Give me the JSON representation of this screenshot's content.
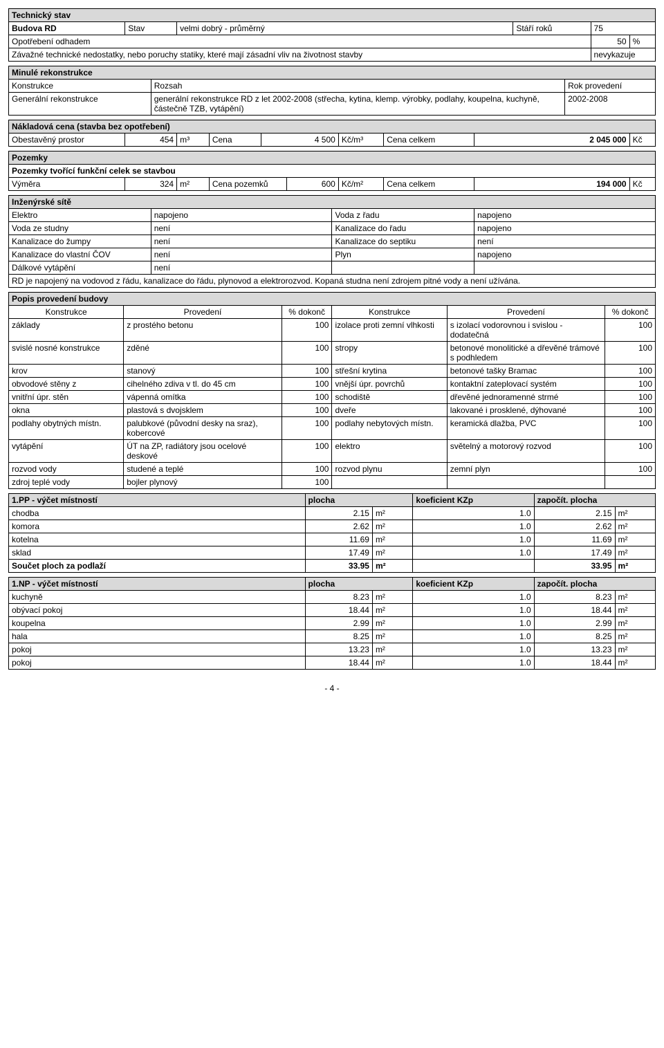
{
  "tech_state": {
    "header": "Technický stav",
    "row1": {
      "l1": "Budova RD",
      "l2": "Stav",
      "v2": "velmi dobrý - průměrný",
      "l3": "Stáří roků",
      "v3": "75"
    },
    "row2": {
      "l": "Opotřebení odhadem",
      "v": "50",
      "u": "%"
    },
    "row3": {
      "l": "Závažné technické nedostatky, nebo poruchy statiky, které mají zásadní vliv na životnost stavby",
      "v": "nevykazuje"
    }
  },
  "recon": {
    "header": "Minulé rekonstrukce",
    "h1": "Konstrukce",
    "h2": "Rozsah",
    "h3": "Rok provedení",
    "r1c1": "Generální rekonstrukce",
    "r1c2": "generální rekonstrukce RD z let 2002-2008 (střecha, kytina, klemp. výrobky, podlahy, koupelna, kuchyně, částečně TZB, vytápění)",
    "r1c3": "2002-2008"
  },
  "cost": {
    "header": "Nákladová cena (stavba bez opotřebení)",
    "l1": "Obestavěný prostor",
    "v1": "454",
    "u1": "m³",
    "l2": "Cena",
    "v2": "4 500",
    "u2": "Kč/m³",
    "l3": "Cena celkem",
    "v3": "2 045 000",
    "u3": "Kč"
  },
  "land": {
    "header": "Pozemky",
    "sub": "Pozemky tvořící funkční celek se stavbou",
    "l1": "Výměra",
    "v1": "324",
    "u1": "m²",
    "l2": "Cena pozemků",
    "v2": "600",
    "u2": "Kč/m²",
    "l3": "Cena celkem",
    "v3": "194 000",
    "u3": "Kč"
  },
  "util": {
    "header": "Inženýrské sítě",
    "rows": [
      {
        "l1": "Elektro",
        "v1": "napojeno",
        "l2": "Voda z řadu",
        "v2": "napojeno"
      },
      {
        "l1": "Voda ze studny",
        "v1": "není",
        "l2": "Kanalizace do řadu",
        "v2": "napojeno"
      },
      {
        "l1": "Kanalizace do žumpy",
        "v1": "není",
        "l2": "Kanalizace do septiku",
        "v2": "není"
      },
      {
        "l1": "Kanalizace do vlastní ČOV",
        "v1": "není",
        "l2": "Plyn",
        "v2": "napojeno"
      },
      {
        "l1": "Dálkové vytápění",
        "v1": "není",
        "l2": "",
        "v2": ""
      }
    ],
    "note": "RD je napojený na vodovod z řádu, kanalizace do řádu, plynovod a elektrorozvod. Kopaná studna není zdrojem pitné vody a není užívána."
  },
  "build": {
    "header": "Popis provedení budovy",
    "h1": "Konstrukce",
    "h2": "Provedení",
    "h3": "% dokonč",
    "h4": "Konstrukce",
    "h5": "Provedení",
    "h6": "% dokonč",
    "rows": [
      {
        "c1": "základy",
        "c2": "z prostého betonu",
        "c3": "100",
        "c4": "izolace proti zemní vlhkosti",
        "c5": "s izolací vodorovnou i svislou - dodatečná",
        "c6": "100"
      },
      {
        "c1": "svislé nosné konstrukce",
        "c2": "zděné",
        "c3": "100",
        "c4": "stropy",
        "c5": "betonové monolitické a dřevěné trámové s podhledem",
        "c6": "100"
      },
      {
        "c1": "krov",
        "c2": "stanový",
        "c3": "100",
        "c4": "střešní krytina",
        "c5": "betonové tašky Bramac",
        "c6": "100"
      },
      {
        "c1": "obvodové stěny z",
        "c2": "cihelného zdiva v tl. do 45 cm",
        "c3": "100",
        "c4": "vnější úpr. povrchů",
        "c5": "kontaktní zateplovací systém",
        "c6": "100"
      },
      {
        "c1": "vnitřní úpr. stěn",
        "c2": "vápenná omítka",
        "c3": "100",
        "c4": "schodiště",
        "c5": "dřevěné jednoramenné strmé",
        "c6": "100"
      },
      {
        "c1": "okna",
        "c2": "plastová s dvojsklem",
        "c3": "100",
        "c4": "dveře",
        "c5": "lakované i prosklené, dýhované",
        "c6": "100"
      },
      {
        "c1": "podlahy obytných místn.",
        "c2": "palubkové (původní desky na sraz), kobercové",
        "c3": "100",
        "c4": "podlahy nebytových místn.",
        "c5": "keramická dlažba, PVC",
        "c6": "100"
      },
      {
        "c1": "vytápění",
        "c2": "ÚT na ZP, radiátory jsou ocelové deskové",
        "c3": "100",
        "c4": "elektro",
        "c5": "světelný a motorový rozvod",
        "c6": "100"
      },
      {
        "c1": "rozvod vody",
        "c2": "studené a teplé",
        "c3": "100",
        "c4": "rozvod plynu",
        "c5": "zemní plyn",
        "c6": "100"
      },
      {
        "c1": "zdroj teplé vody",
        "c2": "bojler plynový",
        "c3": "100",
        "c4": "",
        "c5": "",
        "c6": ""
      }
    ]
  },
  "floor1": {
    "header": "1.PP - výčet místností",
    "h2": "plocha",
    "h3": "koeficient KZp",
    "h4": "započít. plocha",
    "rows": [
      {
        "n": "chodba",
        "a": "2.15",
        "u": "m²",
        "k": "1.0",
        "z": "2.15",
        "zu": "m²"
      },
      {
        "n": "komora",
        "a": "2.62",
        "u": "m²",
        "k": "1.0",
        "z": "2.62",
        "zu": "m²"
      },
      {
        "n": "kotelna",
        "a": "11.69",
        "u": "m²",
        "k": "1.0",
        "z": "11.69",
        "zu": "m²"
      },
      {
        "n": "sklad",
        "a": "17.49",
        "u": "m²",
        "k": "1.0",
        "z": "17.49",
        "zu": "m²"
      }
    ],
    "sum": {
      "l": "Součet ploch za podlaží",
      "a": "33.95",
      "u": "m²",
      "z": "33.95",
      "zu": "m²"
    }
  },
  "floor2": {
    "header": "1.NP - výčet místností",
    "h2": "plocha",
    "h3": "koeficient KZp",
    "h4": "započít. plocha",
    "rows": [
      {
        "n": "kuchyně",
        "a": "8.23",
        "u": "m²",
        "k": "1.0",
        "z": "8.23",
        "zu": "m²"
      },
      {
        "n": "obývací pokoj",
        "a": "18.44",
        "u": "m²",
        "k": "1.0",
        "z": "18.44",
        "zu": "m²"
      },
      {
        "n": "koupelna",
        "a": "2.99",
        "u": "m²",
        "k": "1.0",
        "z": "2.99",
        "zu": "m²"
      },
      {
        "n": "hala",
        "a": "8.25",
        "u": "m²",
        "k": "1.0",
        "z": "8.25",
        "zu": "m²"
      },
      {
        "n": "pokoj",
        "a": "13.23",
        "u": "m²",
        "k": "1.0",
        "z": "13.23",
        "zu": "m²"
      },
      {
        "n": "pokoj",
        "a": "18.44",
        "u": "m²",
        "k": "1.0",
        "z": "18.44",
        "zu": "m²"
      }
    ]
  },
  "page": "- 4 -"
}
